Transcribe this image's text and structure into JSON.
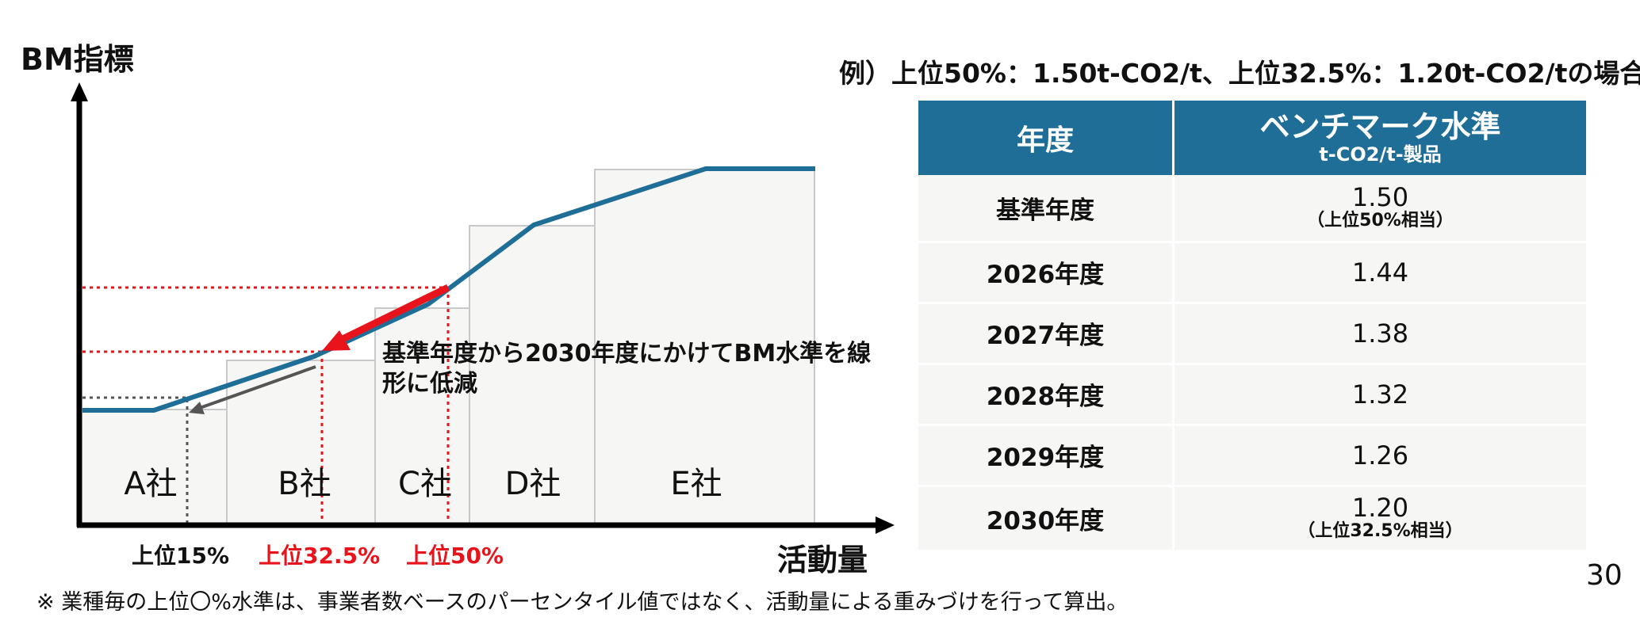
{
  "chart_data": {
    "type": "area",
    "ylabel": "BM指標",
    "xlabel": "活動量",
    "companies": [
      "A社",
      "B社",
      "C社",
      "D社",
      "E社"
    ],
    "curve_note": "基準年度から2030年度にかけてBM水準を線形に低減",
    "x_markers": [
      {
        "label": "上位15%",
        "color": "#111111"
      },
      {
        "label": "上位32.5%",
        "color": "#e8131b"
      },
      {
        "label": "上位50%",
        "color": "#e8131b"
      }
    ],
    "colors": {
      "curve": "#1f6e97",
      "arrow": "#e8131b",
      "guide": "#e8131b",
      "gray_arrow": "#555555",
      "bars_fill": "#f6f6f4",
      "bars_stroke": "#c9c9c9"
    }
  },
  "example_title": "例）上位50%：1.50t-CO2/t、上位32.5%：1.20t-CO2/tの場合",
  "table": {
    "header": {
      "year": "年度",
      "bm": "ベンチマーク水準",
      "unit": "t-CO2/t-製品"
    },
    "rows": [
      {
        "year": "基準年度",
        "value": "1.50",
        "note": "（上位50%相当）"
      },
      {
        "year": "2026年度",
        "value": "1.44",
        "note": ""
      },
      {
        "year": "2027年度",
        "value": "1.38",
        "note": ""
      },
      {
        "year": "2028年度",
        "value": "1.32",
        "note": ""
      },
      {
        "year": "2029年度",
        "value": "1.26",
        "note": ""
      },
      {
        "year": "2030年度",
        "value": "1.20",
        "note": "（上位32.5%相当）"
      }
    ]
  },
  "page_number": "30",
  "footnote": "※ 業種毎の上位〇%水準は、事業者数ベースのパーセンタイル値ではなく、活動量による重みづけを行って算出。",
  "colors": {
    "header_bg": "#1f6e97",
    "row_bg": "#f6f6f4"
  }
}
